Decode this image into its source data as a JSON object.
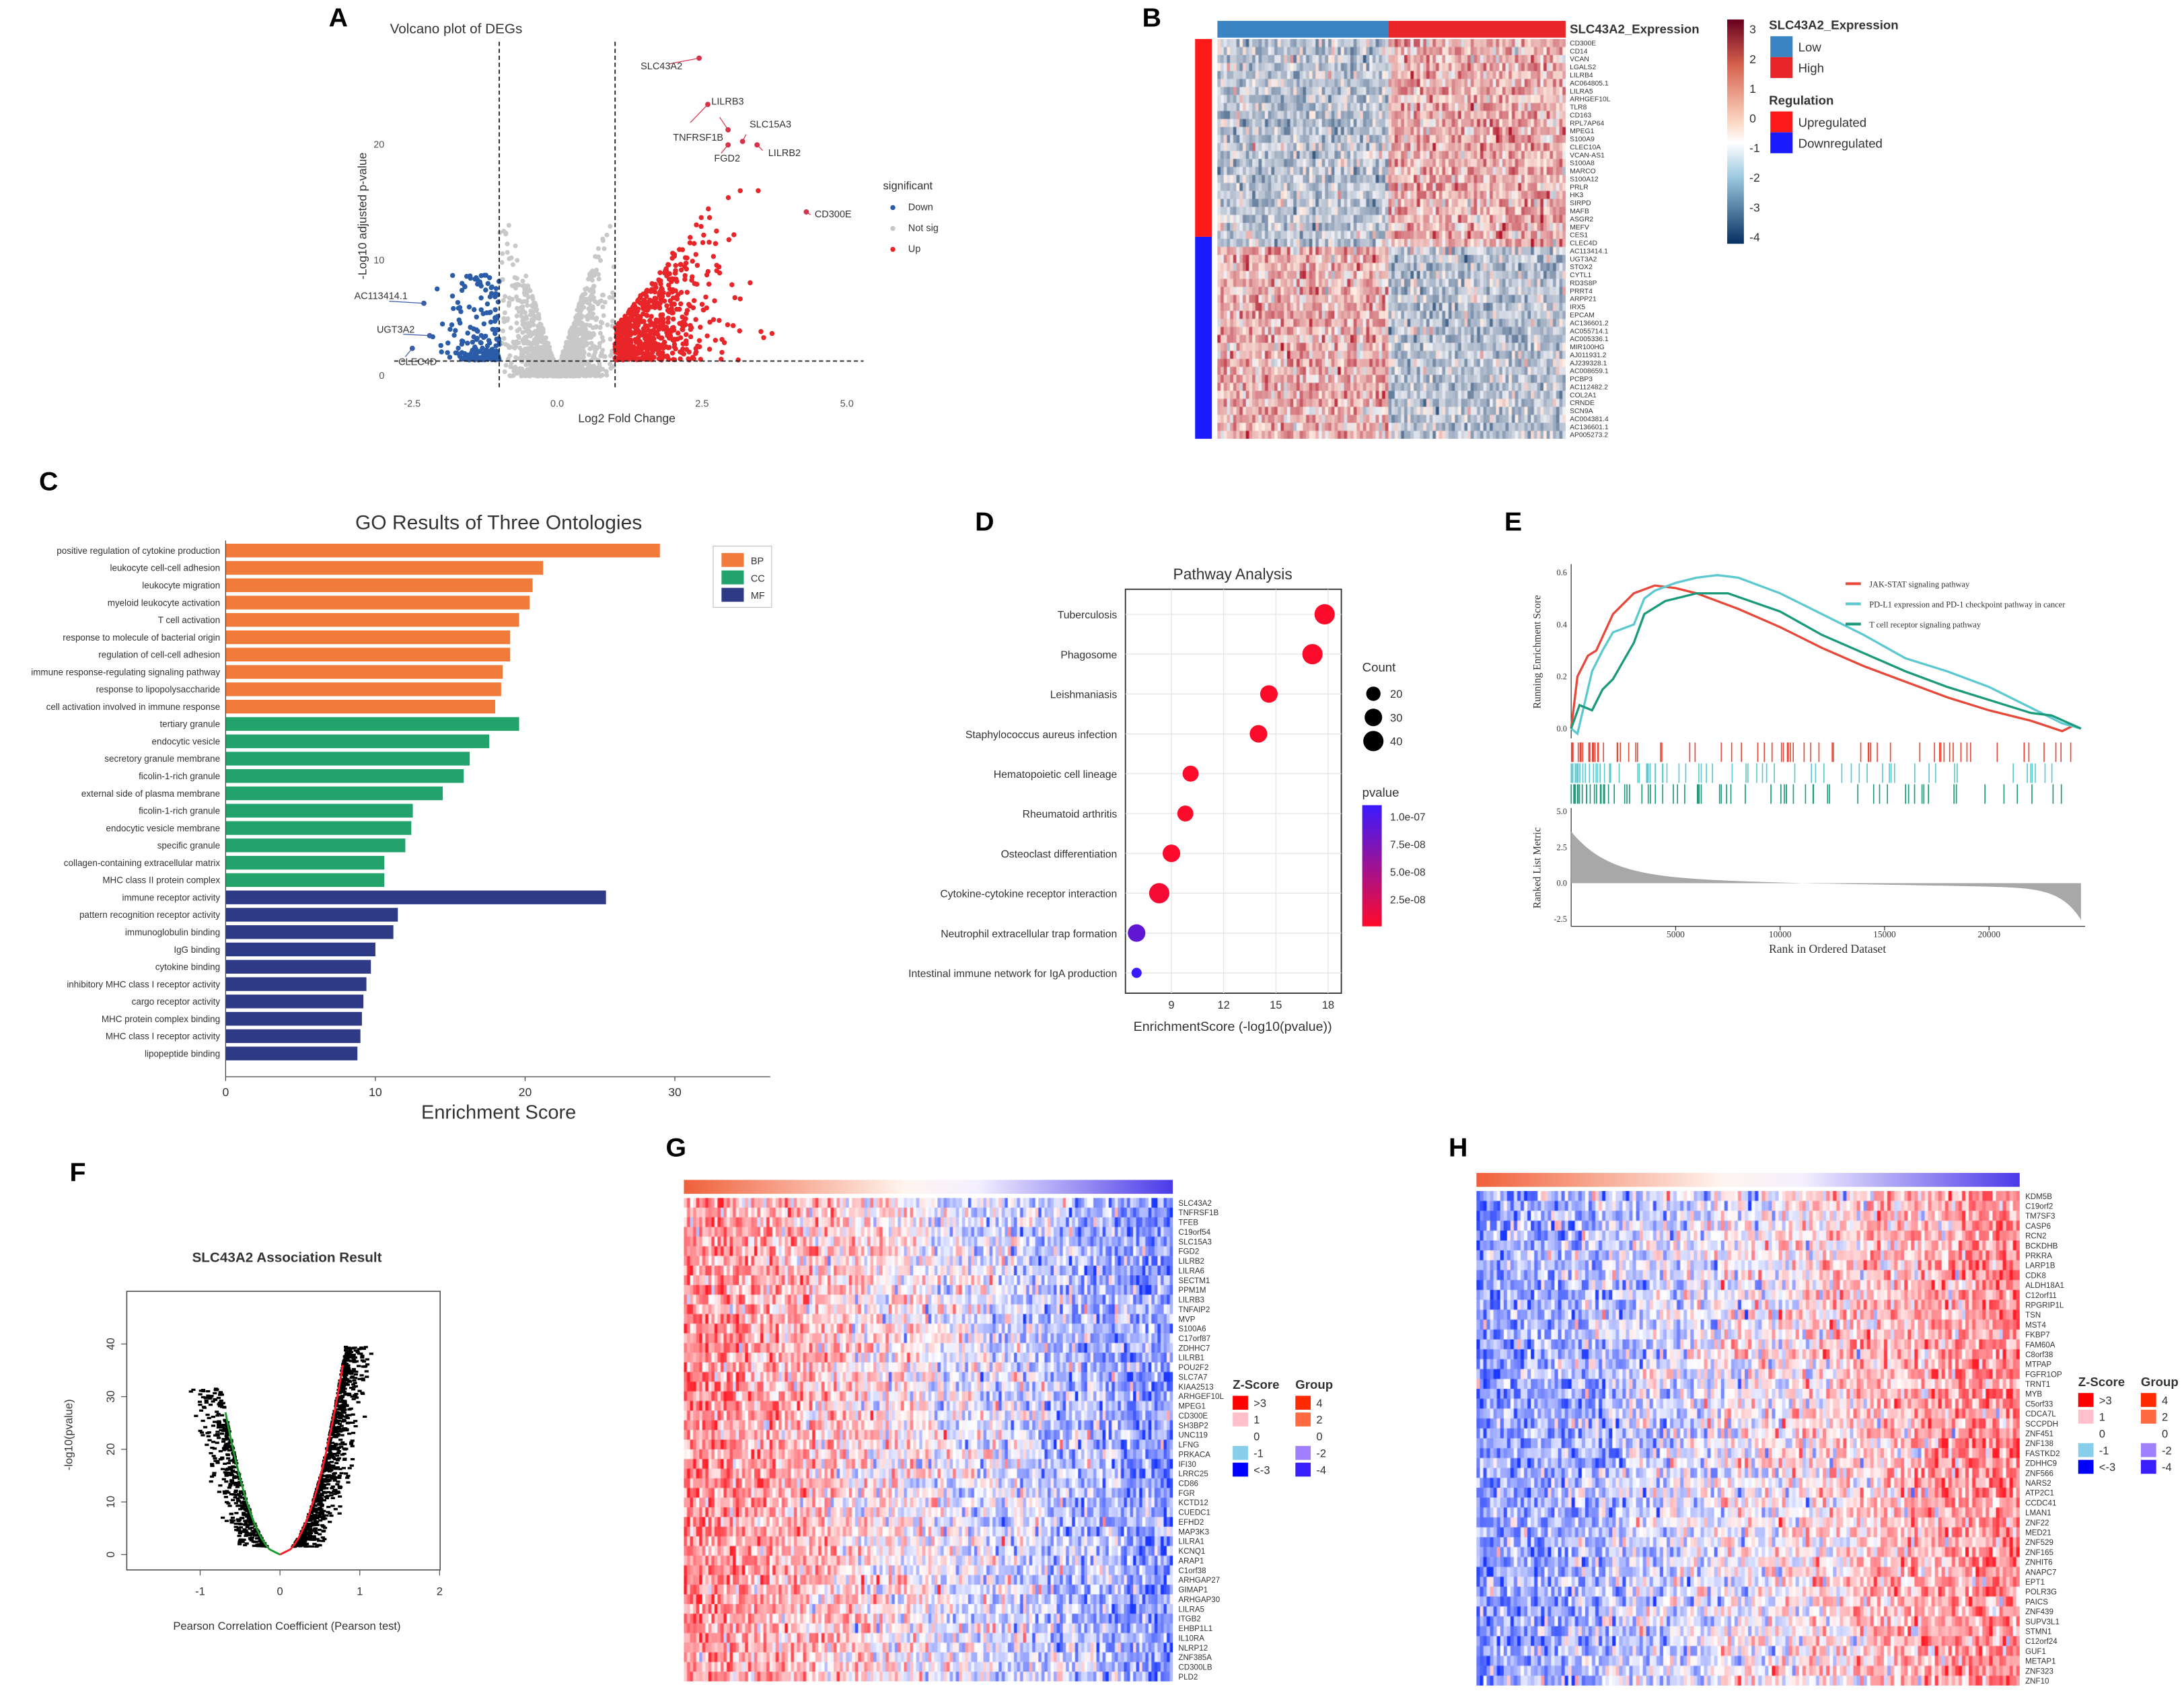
{
  "panel_labels": [
    "A",
    "B",
    "C",
    "D",
    "E",
    "F",
    "G",
    "H"
  ],
  "chart_data": [
    {
      "type": "scatter",
      "title": "Volcano plot of DEGs",
      "xlabel": "Log2 Fold Change",
      "ylabel": "-Log10 adjusted p-value",
      "xlim": [
        -3,
        5.2
      ],
      "ylim": [
        0,
        29
      ],
      "xticks": [
        "-2.5",
        "0.0",
        "2.5",
        "5.0"
      ],
      "xtick_values": [
        -2.5,
        0,
        2.5,
        5
      ],
      "yticks": [
        "0",
        "10",
        "20"
      ],
      "ytick_values": [
        0,
        10,
        20
      ],
      "thresholds": {
        "log2fc": [
          -1,
          1
        ],
        "neg_log10_padj": 1.3
      },
      "legend": {
        "title": "significant",
        "entries": [
          "Down",
          "Not sig",
          "Up"
        ],
        "colors": [
          "#2b5ca8",
          "#c8c8c8",
          "#e8262a"
        ],
        "placement": "right"
      },
      "labeled_points": [
        {
          "gene": "SLC43A2",
          "x": 2.45,
          "y": 27.5,
          "group": "Up"
        },
        {
          "gene": "TNFRSF1B",
          "x": 2.6,
          "y": 23.5,
          "group": "Up"
        },
        {
          "gene": "LILRB3",
          "x": 2.95,
          "y": 21.3,
          "group": "Up"
        },
        {
          "gene": "SLC15A3",
          "x": 3.2,
          "y": 20.3,
          "group": "Up"
        },
        {
          "gene": "FGD2",
          "x": 2.95,
          "y": 20.0,
          "group": "Up"
        },
        {
          "gene": "LILRB2",
          "x": 3.45,
          "y": 20.0,
          "group": "Up"
        },
        {
          "gene": "CD300E",
          "x": 4.3,
          "y": 14.2,
          "group": "Up"
        },
        {
          "gene": "AC113414.1",
          "x": -2.3,
          "y": 6.3,
          "group": "Down"
        },
        {
          "gene": "UGT3A2",
          "x": -2.2,
          "y": 3.5,
          "group": "Down"
        },
        {
          "gene": "CLEC4D",
          "x": -2.5,
          "y": 2.4,
          "group": "Down"
        }
      ]
    },
    {
      "type": "heatmap",
      "title": "SLC43A2_Expression",
      "column_groups": {
        "title": "SLC43A2_Expression",
        "entries": [
          "Low",
          "High"
        ],
        "colors": [
          "#3a84c4",
          "#e8262a"
        ]
      },
      "row_groups": {
        "title": "Regulation",
        "entries": [
          "Upregulated",
          "Downregulated"
        ],
        "colors": [
          "#ff1a1a",
          "#1a1aff"
        ]
      },
      "scale_ticks": [
        "3",
        "2",
        "1",
        "0",
        "-1",
        "-2",
        "-3",
        "-4"
      ],
      "scale_range": [
        -4,
        3
      ],
      "rows_up": [
        "CD300E",
        "CD14",
        "VCAN",
        "LGALS2",
        "LILRB4",
        "AC064805.1",
        "LILRA5",
        "ARHGEF10L",
        "TLR8",
        "CD163",
        "RPL7AP64",
        "MPEG1",
        "S100A9",
        "CLEC10A",
        "VCAN-AS1",
        "S100A8",
        "MARCO",
        "S100A12",
        "PRLR",
        "HK3",
        "SIRPD",
        "MAFB",
        "ASGR2",
        "MEFV",
        "CES1",
        "CLEC4D"
      ],
      "rows_down": [
        "AC113414.1",
        "UGT3A2",
        "STOX2",
        "CYTL1",
        "RD3S8P",
        "PRRT4",
        "ARPP21",
        "IRX5",
        "EPCAM",
        "AC136601.2",
        "AC055714.1",
        "AC005336.1",
        "MIR100HG",
        "AJ011931.2",
        "AJ239328.1",
        "AC008659.1",
        "PCBP3",
        "AC112482.2",
        "COL2A1",
        "CRNDE",
        "SCN9A",
        "AC004381.4",
        "AC136601.1",
        "AP005273.2"
      ]
    },
    {
      "type": "bar",
      "title": "GO Results of Three Ontologies",
      "xlabel": "Enrichment Score",
      "xlim": [
        0,
        36
      ],
      "xticks": [
        "0",
        "10",
        "20",
        "30"
      ],
      "xtick_values": [
        0,
        10,
        20,
        30
      ],
      "legend": {
        "entries": [
          "BP",
          "CC",
          "MF"
        ],
        "colors": [
          "#f07b3a",
          "#22a36b",
          "#2e3a86"
        ],
        "placement": "top-right"
      },
      "categories": [
        "positive regulation of cytokine production",
        "leukocyte cell-cell adhesion",
        "leukocyte migration",
        "myeloid leukocyte activation",
        "T cell activation",
        "response to molecule of bacterial origin",
        "regulation of cell-cell adhesion",
        "immune response-regulating signaling pathway",
        "response to lipopolysaccharide",
        "cell activation involved in immune response",
        "tertiary granule",
        "endocytic vesicle",
        "secretory granule membrane",
        "ficolin-1-rich granule",
        "external side of plasma membrane",
        "ficolin-1-rich granule",
        "endocytic vesicle membrane",
        "specific granule",
        "collagen-containing extracellular matrix",
        "MHC class II protein complex",
        "immune receptor activity",
        "pattern recognition receptor activity",
        "immunoglobulin binding",
        "IgG binding",
        "cytokine binding",
        "inhibitory MHC class I receptor activity",
        "cargo receptor activity",
        "MHC protein complex binding",
        "MHC class I receptor activity",
        "lipopeptide binding"
      ],
      "ontology": [
        "BP",
        "BP",
        "BP",
        "BP",
        "BP",
        "BP",
        "BP",
        "BP",
        "BP",
        "BP",
        "CC",
        "CC",
        "CC",
        "CC",
        "CC",
        "CC",
        "CC",
        "CC",
        "CC",
        "CC",
        "MF",
        "MF",
        "MF",
        "MF",
        "MF",
        "MF",
        "MF",
        "MF",
        "MF",
        "MF"
      ],
      "values": [
        29.0,
        21.2,
        20.5,
        20.3,
        19.6,
        19.0,
        19.0,
        18.5,
        18.4,
        18.0,
        19.6,
        17.6,
        16.3,
        15.9,
        14.5,
        12.5,
        12.4,
        12.0,
        10.6,
        10.6,
        25.4,
        11.5,
        11.2,
        10.0,
        9.7,
        9.4,
        9.2,
        9.1,
        9.0,
        8.8
      ]
    },
    {
      "type": "scatter",
      "title": "Pathway Analysis",
      "xlabel": "EnrichmentScore (-log10(pvalue))",
      "xlim": [
        6.5,
        18.7
      ],
      "xticks": [
        "9",
        "12",
        "15",
        "18"
      ],
      "xtick_values": [
        9,
        12,
        15,
        18
      ],
      "categories": [
        "Tuberculosis",
        "Phagosome",
        "Leishmaniasis",
        "Staphylococcus aureus infection",
        "Hematopoietic cell lineage",
        "Rheumatoid arthritis",
        "Osteoclast differentiation",
        "Cytokine-cytokine receptor interaction",
        "Neutrophil extracellular trap formation",
        "Intestinal immune network for IgA production"
      ],
      "values": [
        17.8,
        17.1,
        14.6,
        14.0,
        10.1,
        9.8,
        9.0,
        8.3,
        7.0,
        7.0
      ],
      "count": [
        40,
        40,
        30,
        30,
        25,
        25,
        30,
        40,
        30,
        10
      ],
      "pvalue": [
        1e-18,
        1e-17,
        1e-15,
        1e-14,
        1e-10,
        1e-10,
        1e-09,
        5e-09,
        8e-08,
        1e-07
      ],
      "size_legend": {
        "title": "Count",
        "entries": [
          "20",
          "30",
          "40"
        ],
        "values": [
          20,
          30,
          40
        ]
      },
      "color_legend": {
        "title": "pvalue",
        "entries": [
          "1.0e-07",
          "7.5e-08",
          "5.0e-08",
          "2.5e-08"
        ],
        "colors": [
          "#3a1aff",
          "#ff0a2a"
        ]
      }
    },
    {
      "type": "line",
      "xlabel": "Rank in Ordered Dataset",
      "ylabel": "Running Enrichment Score",
      "ylabel2": "Ranked List Metric",
      "xticks": [
        "5000",
        "10000",
        "15000",
        "20000"
      ],
      "xtick_values": [
        5000,
        10000,
        15000,
        20000
      ],
      "xlim": [
        0,
        24500
      ],
      "ylim": [
        -0.05,
        0.62
      ],
      "yticks": [
        "0.0",
        "0.2",
        "0.4",
        "0.6"
      ],
      "ytick_values": [
        0,
        0.2,
        0.4,
        0.6
      ],
      "ylim2": [
        -2.5,
        5.0
      ],
      "yticks2": [
        "-2.5",
        "0.0",
        "2.5",
        "5.0"
      ],
      "ytick2_values": [
        -2.5,
        0,
        2.5,
        5
      ],
      "series": [
        {
          "name": "JAK-STAT signaling pathway",
          "color": "#e8483a",
          "points": [
            [
              0,
              0
            ],
            [
              300,
              0.2
            ],
            [
              800,
              0.28
            ],
            [
              1200,
              0.3
            ],
            [
              2000,
              0.44
            ],
            [
              3000,
              0.52
            ],
            [
              4000,
              0.55
            ],
            [
              5000,
              0.54
            ],
            [
              6000,
              0.52
            ],
            [
              8000,
              0.46
            ],
            [
              10000,
              0.39
            ],
            [
              12000,
              0.31
            ],
            [
              14000,
              0.24
            ],
            [
              16000,
              0.18
            ],
            [
              18000,
              0.12
            ],
            [
              20000,
              0.07
            ],
            [
              22000,
              0.03
            ],
            [
              23500,
              -0.01
            ],
            [
              24000,
              0.01
            ],
            [
              24400,
              0.0
            ]
          ]
        },
        {
          "name": "PD-L1 expression and PD-1 checkpoint pathway in cancer",
          "color": "#5cc8d0",
          "points": [
            [
              0,
              0
            ],
            [
              300,
              -0.02
            ],
            [
              1000,
              0.22
            ],
            [
              1500,
              0.3
            ],
            [
              2000,
              0.37
            ],
            [
              3000,
              0.4
            ],
            [
              3500,
              0.5
            ],
            [
              4000,
              0.53
            ],
            [
              5000,
              0.56
            ],
            [
              6000,
              0.58
            ],
            [
              7000,
              0.59
            ],
            [
              8000,
              0.58
            ],
            [
              10000,
              0.52
            ],
            [
              12000,
              0.44
            ],
            [
              14000,
              0.36
            ],
            [
              16000,
              0.27
            ],
            [
              18000,
              0.22
            ],
            [
              20000,
              0.16
            ],
            [
              22000,
              0.08
            ],
            [
              23500,
              0.02
            ],
            [
              24400,
              0.0
            ]
          ]
        },
        {
          "name": "T cell receptor signaling pathway",
          "color": "#1a9a7a",
          "points": [
            [
              0,
              0
            ],
            [
              400,
              0.09
            ],
            [
              1000,
              0.07
            ],
            [
              1500,
              0.15
            ],
            [
              2000,
              0.19
            ],
            [
              3000,
              0.33
            ],
            [
              3500,
              0.44
            ],
            [
              4500,
              0.49
            ],
            [
              6000,
              0.52
            ],
            [
              7500,
              0.52
            ],
            [
              10000,
              0.45
            ],
            [
              12000,
              0.36
            ],
            [
              14000,
              0.29
            ],
            [
              16000,
              0.22
            ],
            [
              18000,
              0.16
            ],
            [
              20000,
              0.11
            ],
            [
              22000,
              0.06
            ],
            [
              23000,
              0.05
            ],
            [
              24400,
              0.0
            ]
          ]
        }
      ]
    },
    {
      "type": "scatter",
      "title": "SLC43A2 Association Result",
      "xlabel": "Pearson Correlation Coefficient (Pearson test)",
      "ylabel": "-log10(pvalue)",
      "xlim": [
        -1.6,
        2.1
      ],
      "ylim": [
        -1,
        47
      ],
      "xticks": [
        "-1",
        "0",
        "1",
        "2"
      ],
      "xtick_values": [
        -1,
        0,
        1,
        2
      ],
      "yticks": [
        "0",
        "10",
        "20",
        "30",
        "40"
      ],
      "ytick_values": [
        0,
        10,
        20,
        30,
        40
      ]
    },
    {
      "type": "heatmap",
      "legend_zscore": {
        "title": "Z-Score",
        "entries": [
          ">3",
          "1",
          "0",
          "-1",
          "<-3"
        ],
        "colors": [
          "#ff0000",
          "#ffc0cb",
          "#ffffff",
          "#87ceeb",
          "#0000ff"
        ]
      },
      "legend_group": {
        "title": "Group",
        "entries": [
          "4",
          "2",
          "0",
          "-2",
          "-4"
        ],
        "colors": [
          "#ff2a00",
          "#ff6a40",
          "#ffffff",
          "#a080ff",
          "#3a20ff"
        ]
      },
      "rows": [
        "SLC43A2",
        "TNFRSF1B",
        "TFEB",
        "C19orf54",
        "SLC15A3",
        "FGD2",
        "LILRB2",
        "LILRA6",
        "SECTM1",
        "PPM1M",
        "LILRB3",
        "TNFAIP2",
        "MVP",
        "S100A6",
        "C17orf87",
        "ZDHHC7",
        "LILRB1",
        "POU2F2",
        "SLC7A7",
        "KIAA2513",
        "ARHGEF10L",
        "MPEG1",
        "CD300E",
        "SH3BP2",
        "UNC119",
        "LFNG",
        "PRKACA",
        "IFI30",
        "LRRC25",
        "CD86",
        "FGR",
        "KCTD12",
        "CUEDC1",
        "EFHD2",
        "MAP3K3",
        "LILRA1",
        "KCNQ1",
        "ARAP1",
        "C1orf38",
        "ARHGAP27",
        "GIMAP1",
        "ARHGAP30",
        "LILRA5",
        "ITGB2",
        "EHBP1L1",
        "IL10RA",
        "NLRP12",
        "ZNF385A",
        "CD300LB",
        "PLD2"
      ],
      "correlation": "positive"
    },
    {
      "type": "heatmap",
      "legend_zscore": {
        "title": "Z-Score",
        "entries": [
          ">3",
          "1",
          "0",
          "-1",
          "<-3"
        ],
        "colors": [
          "#ff0000",
          "#ffc0cb",
          "#ffffff",
          "#87ceeb",
          "#0000ff"
        ]
      },
      "legend_group": {
        "title": "Group",
        "entries": [
          "4",
          "2",
          "0",
          "-2",
          "-4"
        ],
        "colors": [
          "#ff2a00",
          "#ff6a40",
          "#ffffff",
          "#a080ff",
          "#3a20ff"
        ]
      },
      "rows": [
        "KDM5B",
        "C19orf2",
        "TM7SF3",
        "CASP6",
        "RCN2",
        "BCKDHB",
        "PRKRA",
        "LARP1B",
        "CDK8",
        "ALDH18A1",
        "C12orf11",
        "RPGRIP1L",
        "TSN",
        "MST4",
        "FKBP7",
        "FAM60A",
        "C8orf38",
        "MTPAP",
        "FGFR1OP",
        "TRNT1",
        "MYB",
        "C5orf33",
        "CDCA7L",
        "SCCPDH",
        "ZNF451",
        "ZNF138",
        "FASTKD2",
        "ZDHHC9",
        "ZNF566",
        "NARS2",
        "ATP2C1",
        "CCDC41",
        "LMAN1",
        "ZNF22",
        "MED21",
        "ZNF529",
        "ZNF165",
        "ZNHIT6",
        "ANAPC7",
        "EPT1",
        "POLR3G",
        "PAICS",
        "ZNF439",
        "SUPV3L1",
        "STMN1",
        "C12orf24",
        "GUF1",
        "METAP1",
        "ZNF323",
        "ZNF10"
      ],
      "correlation": "negative"
    }
  ]
}
